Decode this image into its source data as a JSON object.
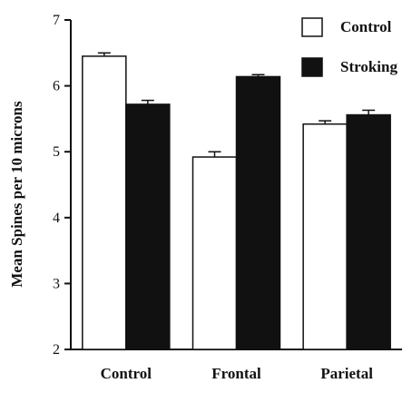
{
  "chart_data": {
    "type": "bar",
    "categories": [
      "Control",
      "Frontal",
      "Parietal"
    ],
    "series": [
      {
        "name": "Control",
        "values": [
          6.45,
          4.92,
          5.42
        ],
        "errors": [
          0.05,
          0.08,
          0.05
        ],
        "color": "#ffffff"
      },
      {
        "name": "Stroking",
        "values": [
          5.72,
          6.14,
          5.56
        ],
        "errors": [
          0.06,
          0.03,
          0.07
        ],
        "color": "#111111"
      }
    ],
    "ylabel": "Mean Spines per 10 microns",
    "xlabel": "",
    "ylim": [
      2,
      7
    ],
    "yticks": [
      2,
      3,
      4,
      5,
      6,
      7
    ],
    "legend_position": "top-right",
    "grid": false
  }
}
